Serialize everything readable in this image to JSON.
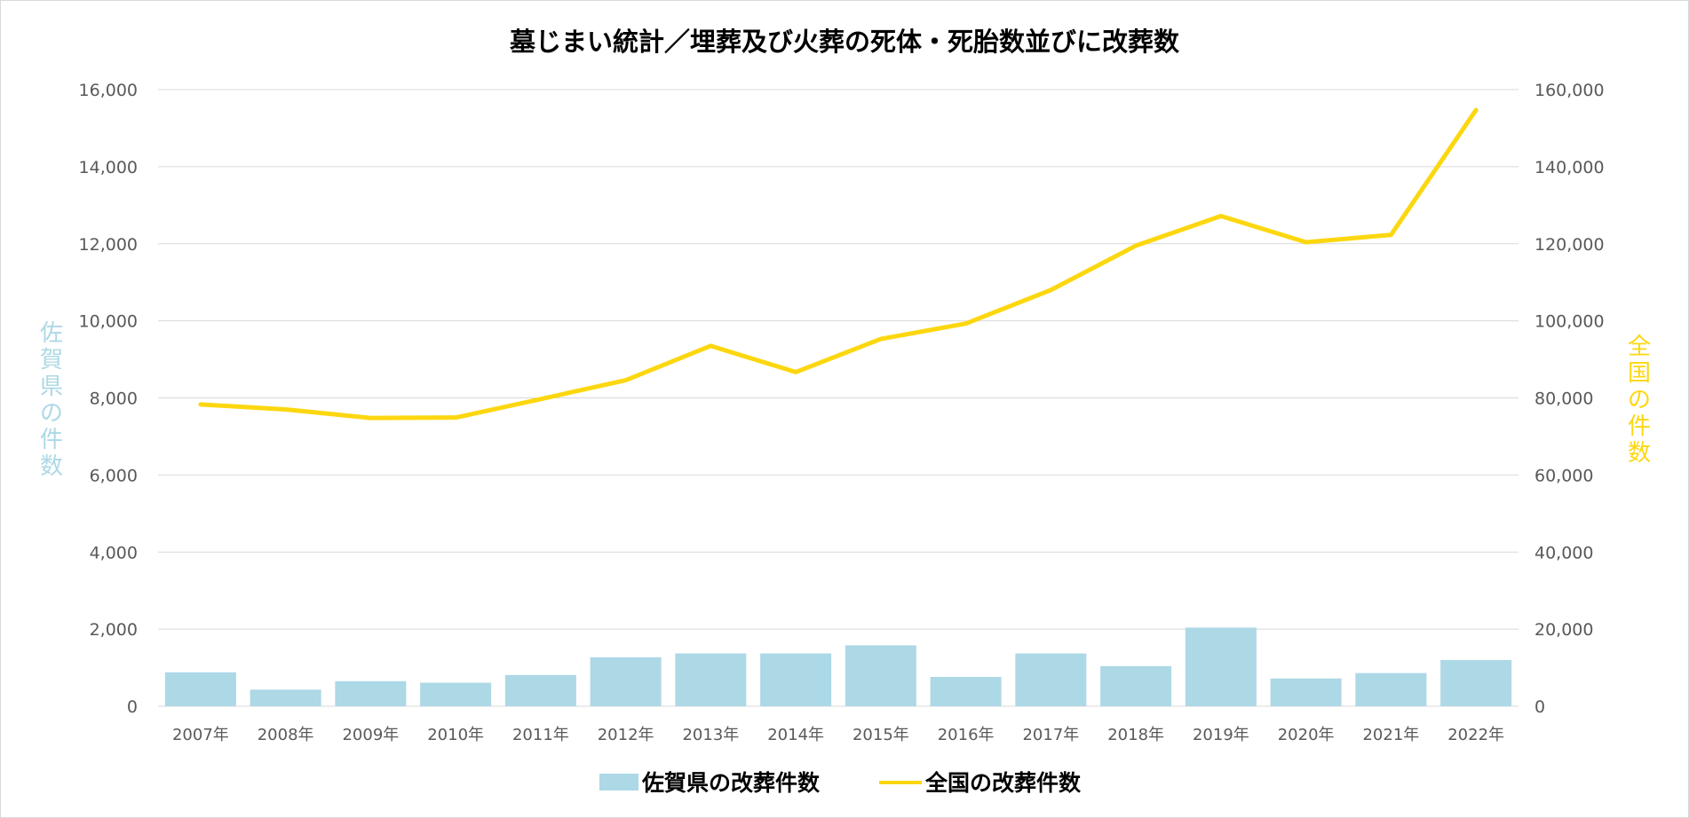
{
  "chart_data": {
    "type": "bar+line",
    "title": "墓じまい統計／埋葬及び火葬の死体・死胎数並びに改葬数",
    "categories": [
      "2007年",
      "2008年",
      "2009年",
      "2010年",
      "2011年",
      "2012年",
      "2013年",
      "2014年",
      "2015年",
      "2016年",
      "2017年",
      "2018年",
      "2019年",
      "2020年",
      "2021年",
      "2022年"
    ],
    "y_left": {
      "label": "佐賀県の件数",
      "ticks": [
        "0",
        "2,000",
        "4,000",
        "6,000",
        "8,000",
        "10,000",
        "12,000",
        "14,000",
        "16,000"
      ],
      "ylim": [
        0,
        16000
      ]
    },
    "y_right": {
      "label": "全国の件数",
      "ticks": [
        "0",
        "20,000",
        "40,000",
        "60,000",
        "80,000",
        "100,000",
        "120,000",
        "140,000",
        "160,000"
      ],
      "ylim": [
        0,
        160000
      ]
    },
    "series": [
      {
        "name": "佐賀県の改葬件数",
        "type": "bar",
        "axis": "left",
        "color": "#add8e6",
        "values": [
          880,
          430,
          650,
          610,
          810,
          1270,
          1370,
          1370,
          1580,
          760,
          1370,
          1040,
          2040,
          720,
          860,
          1200
        ]
      },
      {
        "name": "全国の改葬件数",
        "type": "line",
        "axis": "right",
        "color": "#fcd70f",
        "values": [
          78300,
          77000,
          74800,
          74900,
          79700,
          84600,
          93500,
          86700,
          95300,
          99300,
          108000,
          119500,
          127200,
          120400,
          122300,
          154700
        ]
      }
    ],
    "grid": true,
    "legend_position": "bottom-center",
    "colors": {
      "left_axis_label": "#add8e6",
      "right_axis_label": "#fcd70f",
      "tick_text": "#595959",
      "gridline": "#d9d9d9",
      "title_text": "#000000"
    }
  }
}
